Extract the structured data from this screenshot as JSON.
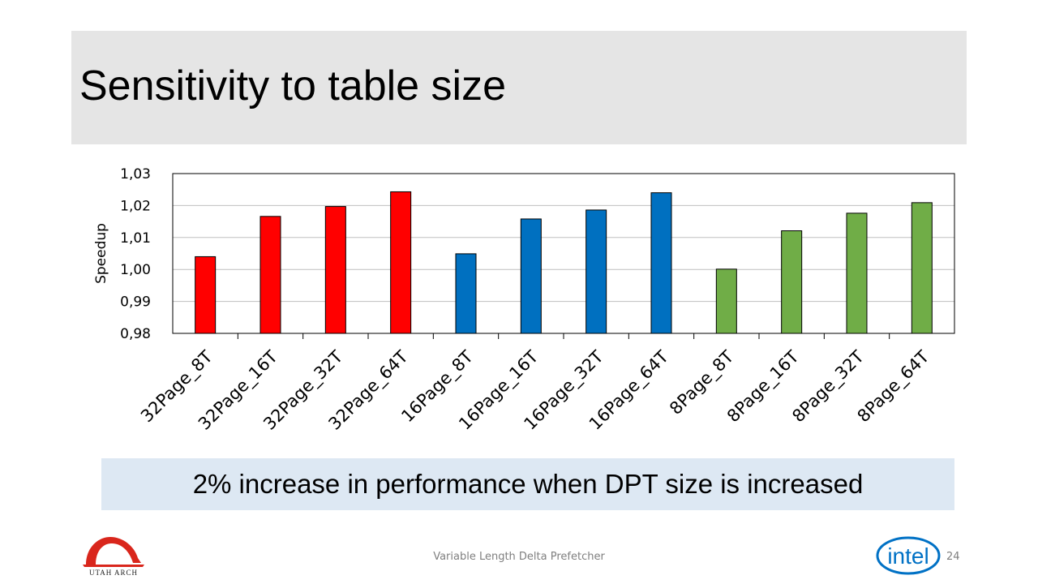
{
  "slide": {
    "title": "Sensitivity to table size",
    "callout": "2% increase in performance when DPT size is increased",
    "footer": "Variable Length Delta Prefetcher",
    "page_number": "24"
  },
  "logos": {
    "left_text": "UTAH ARCH",
    "right_text": "intel"
  },
  "colors": {
    "red": "#ff0000",
    "blue": "#0070c0",
    "green": "#70ad47",
    "title_band": "#e5e5e5",
    "callout_bg": "#dde8f3",
    "intel_blue": "#0071c5",
    "arch_red": "#d9261c"
  },
  "chart_data": {
    "type": "bar",
    "ylabel": "Speedup",
    "xlabel": "",
    "ylim": [
      0.98,
      1.03
    ],
    "yticks": [
      "0,98",
      "0,99",
      "1,00",
      "1,01",
      "1,02",
      "1,03"
    ],
    "grid": true,
    "legend": "none",
    "categories": [
      "32Page_8T",
      "32Page_16T",
      "32Page_32T",
      "32Page_64T",
      "16Page_8T",
      "16Page_16T",
      "16Page_32T",
      "16Page_64T",
      "8Page_8T",
      "8Page_16T",
      "8Page_32T",
      "8Page_64T"
    ],
    "values": [
      1.004,
      1.0166,
      1.0197,
      1.0243,
      1.0049,
      1.0158,
      1.0186,
      1.024,
      1.0001,
      1.0121,
      1.0176,
      1.0209
    ],
    "bar_colors": [
      "red",
      "red",
      "red",
      "red",
      "blue",
      "blue",
      "blue",
      "blue",
      "green",
      "green",
      "green",
      "green"
    ]
  }
}
